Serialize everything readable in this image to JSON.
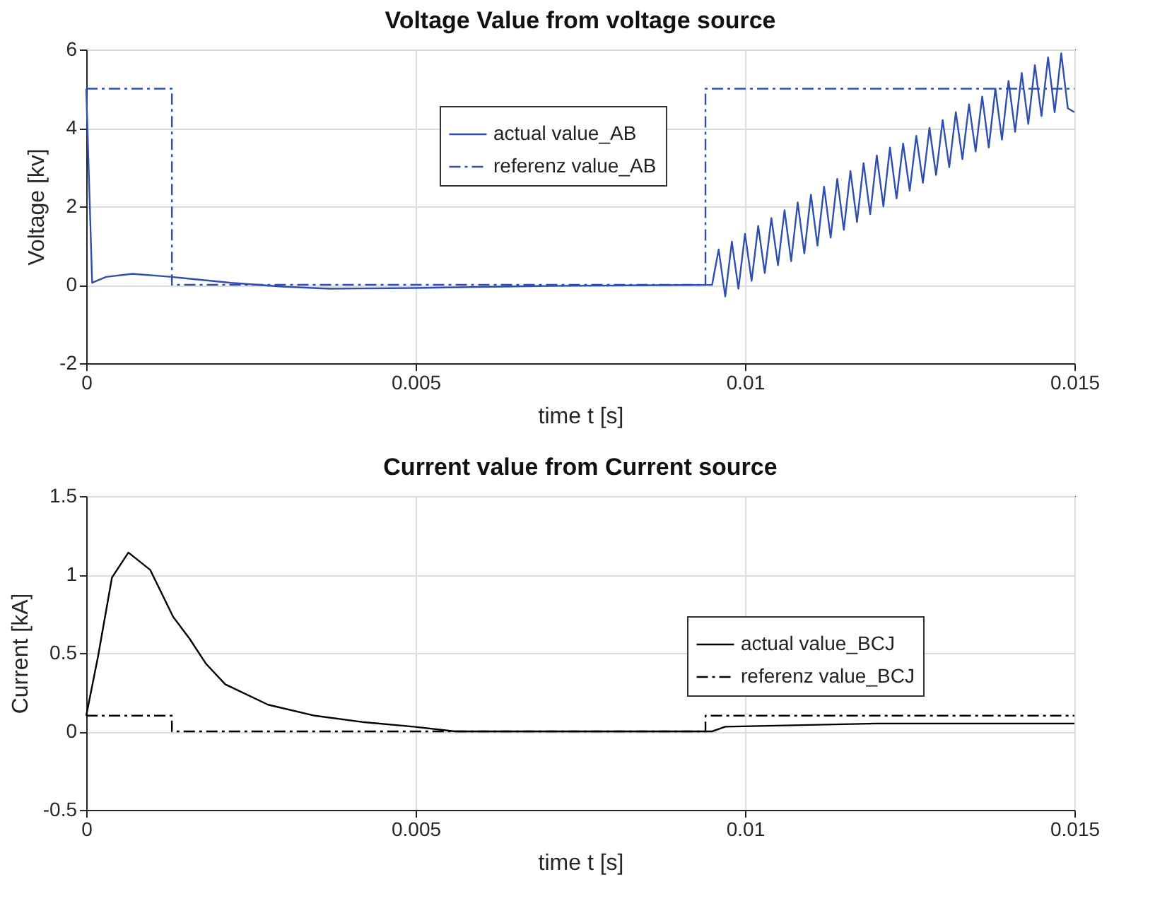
{
  "chart_data": [
    {
      "type": "line",
      "title": "Voltage Value from voltage source",
      "xlabel": "time t [s]",
      "ylabel": "Voltage [kv]",
      "xlim": [
        0,
        0.015
      ],
      "xticks": [
        0,
        0.005,
        0.01,
        0.015
      ],
      "ylim": [
        -2,
        6
      ],
      "yticks": [
        -2,
        0,
        2,
        4,
        6
      ],
      "grid": true,
      "legend": "right",
      "series": [
        {
          "name": "actual value_AB",
          "color": "#2e4fb0",
          "line_style": "solid",
          "x": [
            0,
            9e-05,
            0.0003,
            0.0007,
            0.0013,
            0.0022,
            0.003,
            0.0037,
            0.005,
            0.007,
            0.0095,
            0.0096,
            0.0097,
            0.0098,
            0.0099,
            0.01,
            0.0101,
            0.0102,
            0.0103,
            0.0104,
            0.0105,
            0.0106,
            0.0107,
            0.0108,
            0.0109,
            0.011,
            0.0111,
            0.0112,
            0.0113,
            0.0114,
            0.0115,
            0.0116,
            0.0117,
            0.0118,
            0.0119,
            0.012,
            0.0121,
            0.0122,
            0.0123,
            0.0124,
            0.0125,
            0.0126,
            0.0127,
            0.0128,
            0.0129,
            0.013,
            0.0131,
            0.0132,
            0.0133,
            0.0134,
            0.0135,
            0.0136,
            0.0137,
            0.0138,
            0.0139,
            0.014,
            0.0141,
            0.0142,
            0.0143,
            0.0144,
            0.0145,
            0.0146,
            0.0147,
            0.0148,
            0.0149,
            0.015
          ],
          "values": [
            5,
            0.05,
            0.2,
            0.28,
            0.2,
            0.05,
            -0.05,
            -0.1,
            -0.08,
            -0.03,
            0,
            0.9,
            -0.3,
            1.1,
            -0.1,
            1.3,
            0.1,
            1.5,
            0.3,
            1.7,
            0.5,
            1.9,
            0.6,
            2.1,
            0.8,
            2.3,
            1.0,
            2.5,
            1.2,
            2.7,
            1.4,
            2.9,
            1.6,
            3.1,
            1.8,
            3.3,
            2.0,
            3.5,
            2.2,
            3.6,
            2.4,
            3.8,
            2.6,
            4.0,
            2.8,
            4.2,
            3.0,
            4.4,
            3.2,
            4.6,
            3.4,
            4.8,
            3.5,
            5.0,
            3.7,
            5.2,
            3.9,
            5.4,
            4.1,
            5.6,
            4.3,
            5.8,
            4.4,
            5.9,
            4.5,
            4.4
          ]
        },
        {
          "name": "referenz value_AB",
          "color": "#2e4fb0",
          "line_style": "dashdot",
          "x": [
            0,
            0.0013,
            0.0013,
            0.0094,
            0.0094,
            0.015
          ],
          "values": [
            5,
            5,
            0,
            0,
            5,
            5
          ]
        }
      ]
    },
    {
      "type": "line",
      "title": "Current value from Current source",
      "xlabel": "time t [s]",
      "ylabel": "Current [kA]",
      "xlim": [
        0,
        0.015
      ],
      "xticks": [
        0,
        0.005,
        0.01,
        0.015
      ],
      "ylim": [
        -0.5,
        1.5
      ],
      "yticks": [
        -0.5,
        0,
        0.5,
        1,
        1.5
      ],
      "grid": true,
      "legend": "right",
      "series": [
        {
          "name": "actual value_BCJ",
          "color": "#000000",
          "line_style": "solid",
          "x": [
            0,
            0.00018,
            0.00039,
            0.00064,
            0.00097,
            0.00132,
            0.00157,
            0.00182,
            0.00211,
            0.00276,
            0.00347,
            0.00419,
            0.00497,
            0.0056,
            0.007,
            0.0095,
            0.0097,
            0.012,
            0.015
          ],
          "values": [
            0.1,
            0.48,
            0.98,
            1.14,
            1.03,
            0.73,
            0.59,
            0.43,
            0.3,
            0.17,
            0.1,
            0.06,
            0.03,
            0,
            0,
            0,
            0.03,
            0.05,
            0.05
          ]
        },
        {
          "name": "referenz value_BCJ",
          "color": "#000000",
          "line_style": "dashdot",
          "x": [
            0,
            0.0013,
            0.0013,
            0.0094,
            0.0094,
            0.015
          ],
          "values": [
            0.1,
            0.1,
            0,
            0,
            0.1,
            0.1
          ]
        }
      ]
    }
  ]
}
